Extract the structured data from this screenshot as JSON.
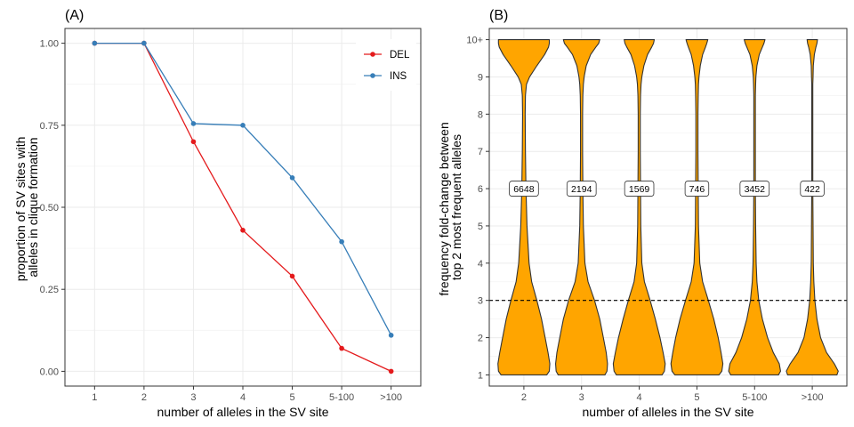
{
  "chart_data": [
    {
      "type": "line",
      "panel_label": "(A)",
      "xlabel": "number of alleles in the SV site",
      "ylabel_lines": [
        "proportion of SV sites with",
        "alleles in clique formation"
      ],
      "categories": [
        "1",
        "2",
        "3",
        "4",
        "5",
        "5-100",
        ">100"
      ],
      "ylim": [
        -0.045,
        1.045
      ],
      "yticks": [
        0.0,
        0.25,
        0.5,
        0.75,
        1.0
      ],
      "ytick_labels": [
        "0.00",
        "0.25",
        "0.50",
        "0.75",
        "1.00"
      ],
      "grid": true,
      "legend_position": "top-right",
      "series": [
        {
          "name": "DEL",
          "color": "#e41a1c",
          "values": [
            1.0,
            1.0,
            0.7,
            0.43,
            0.29,
            0.07,
            0.0
          ]
        },
        {
          "name": "INS",
          "color": "#377eb8",
          "values": [
            1.0,
            1.0,
            0.755,
            0.75,
            0.59,
            0.395,
            0.11
          ]
        }
      ]
    },
    {
      "type": "violin",
      "panel_label": "(B)",
      "xlabel": "number of alleles in the SV site",
      "ylabel_lines": [
        "frequency fold-change between",
        "top 2 most frequent alleles"
      ],
      "categories": [
        "2",
        "3",
        "4",
        "5",
        "5-100",
        ">100"
      ],
      "ylim": [
        0.7,
        10.3
      ],
      "yticks": [
        1,
        2,
        3,
        4,
        5,
        6,
        7,
        8,
        9,
        10
      ],
      "ytick_labels": [
        "1",
        "2",
        "3",
        "4",
        "5",
        "6",
        "7",
        "8",
        "9",
        "10+"
      ],
      "grid": true,
      "fill_color": "#ffa500",
      "reference_line": {
        "y": 3,
        "style": "dashed"
      },
      "count_label_y": 6,
      "counts": [
        "6648",
        "2194",
        "1569",
        "746",
        "3452",
        "422"
      ],
      "violin_profiles": {
        "y": [
          1.0,
          1.1,
          1.3,
          1.6,
          2.0,
          2.5,
          3.0,
          3.5,
          4.0,
          5.0,
          6.0,
          7.0,
          8.0,
          8.5,
          8.8,
          9.0,
          9.3,
          9.6,
          9.8,
          9.9,
          10.0
        ],
        "relative_width": [
          [
            0.88,
            0.98,
            1.0,
            0.93,
            0.82,
            0.68,
            0.5,
            0.3,
            0.2,
            0.12,
            0.08,
            0.06,
            0.05,
            0.06,
            0.1,
            0.22,
            0.5,
            0.8,
            0.95,
            0.98,
            0.98
          ],
          [
            0.9,
            0.98,
            1.0,
            0.95,
            0.84,
            0.7,
            0.5,
            0.25,
            0.13,
            0.07,
            0.05,
            0.04,
            0.04,
            0.05,
            0.07,
            0.1,
            0.18,
            0.35,
            0.55,
            0.66,
            0.7
          ],
          [
            0.88,
            0.97,
            1.0,
            0.92,
            0.8,
            0.62,
            0.42,
            0.2,
            0.1,
            0.06,
            0.05,
            0.04,
            0.04,
            0.05,
            0.07,
            0.1,
            0.18,
            0.32,
            0.48,
            0.55,
            0.58
          ],
          [
            0.85,
            0.96,
            1.0,
            0.93,
            0.82,
            0.65,
            0.44,
            0.22,
            0.11,
            0.06,
            0.05,
            0.04,
            0.04,
            0.05,
            0.06,
            0.08,
            0.13,
            0.22,
            0.33,
            0.38,
            0.42
          ],
          [
            0.92,
            1.0,
            0.95,
            0.72,
            0.5,
            0.3,
            0.16,
            0.09,
            0.06,
            0.04,
            0.03,
            0.03,
            0.03,
            0.03,
            0.04,
            0.05,
            0.09,
            0.18,
            0.3,
            0.36,
            0.4
          ],
          [
            0.95,
            1.0,
            0.85,
            0.55,
            0.32,
            0.18,
            0.1,
            0.06,
            0.04,
            0.03,
            0.02,
            0.02,
            0.02,
            0.02,
            0.02,
            0.03,
            0.04,
            0.08,
            0.14,
            0.18,
            0.2
          ]
        ]
      }
    }
  ]
}
